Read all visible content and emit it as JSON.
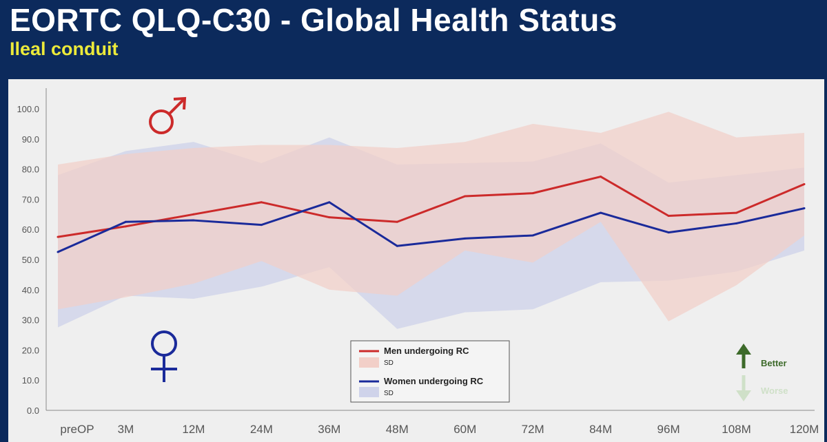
{
  "title": "EORTC QLQ-C30 - Global Health Status",
  "subtitle": "Ileal conduit",
  "colors": {
    "background": "#0c2a5c",
    "title": "#ffffff",
    "subtitle": "#ecea3a",
    "men": "#cc2a2a",
    "men_sd": "#f2cfc8",
    "women": "#1a2a9a",
    "women_sd": "#cfd3ea",
    "better": "#3d6a2a",
    "worse": "#cfe0c8"
  },
  "symbols": {
    "male": "male-symbol-icon",
    "female": "female-symbol-icon"
  },
  "indicator": {
    "better_label": "Better",
    "worse_label": "Worse"
  },
  "chart_data": {
    "type": "line",
    "categories": [
      "preOP",
      "3M",
      "12M",
      "24M",
      "36M",
      "48M",
      "60M",
      "72M",
      "84M",
      "96M",
      "108M",
      "120M"
    ],
    "ylim": [
      0,
      100
    ],
    "yticks": [
      "0.0",
      "10.0",
      "20.0",
      "30.0",
      "40.0",
      "50.0",
      "60.0",
      "70.0",
      "80.0",
      "90.0",
      "100.0"
    ],
    "grid": false,
    "legend_position": "bottom-center",
    "series": [
      {
        "name": "Men undergoing RC",
        "sd_label": "SD",
        "values": [
          57.5,
          61.0,
          65.0,
          69.0,
          64.0,
          62.5,
          71.0,
          72.0,
          77.5,
          64.5,
          65.5,
          75.0
        ],
        "sd_upper": [
          81.5,
          85.0,
          87.0,
          88.0,
          88.0,
          87.0,
          89.0,
          95.0,
          92.0,
          99.0,
          90.5,
          92.0
        ],
        "sd_lower": [
          33.5,
          37.5,
          42.0,
          49.5,
          40.0,
          38.0,
          53.0,
          49.0,
          62.5,
          29.5,
          41.5,
          58.0
        ]
      },
      {
        "name": "Women undergoing RC",
        "sd_label": "SD",
        "values": [
          52.5,
          62.5,
          63.0,
          61.5,
          69.0,
          54.5,
          57.0,
          58.0,
          65.5,
          59.0,
          62.0,
          67.0
        ],
        "sd_upper": [
          78.0,
          86.0,
          89.0,
          82.0,
          90.5,
          81.5,
          82.0,
          82.5,
          88.5,
          75.5,
          78.0,
          80.5
        ],
        "sd_lower": [
          27.5,
          38.0,
          37.0,
          41.0,
          47.5,
          27.0,
          32.5,
          33.5,
          42.5,
          43.0,
          46.0,
          53.0
        ]
      }
    ]
  }
}
